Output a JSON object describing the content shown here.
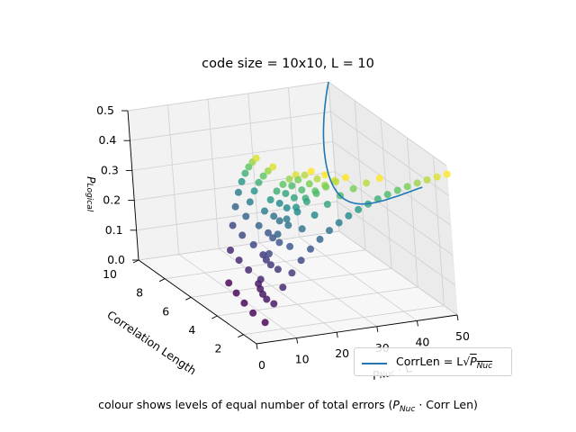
{
  "chart_data": {
    "type": "scatter",
    "title": "code size = 10x10, L = 10",
    "caption_prefix": "colour shows levels of equal number of total errors (",
    "caption_p": "P",
    "caption_sub": "Nuc",
    "caption_suffix": " · Corr Len)",
    "xlabel": "P",
    "xlabel_sub": "Nuc",
    "xlabel_rest": " · L",
    "ylabel": "Correlation Length",
    "zlabel": "P",
    "zlabel_sub": "Logical",
    "xlim": [
      0,
      50
    ],
    "ylim": [
      1,
      10
    ],
    "zlim": [
      0,
      0.5
    ],
    "x_ticks": [
      "0",
      "10",
      "20",
      "30",
      "40",
      "50"
    ],
    "y_ticks": [
      "2",
      "4",
      "6",
      "8",
      "10"
    ],
    "z_ticks": [
      "0.0",
      "0.1",
      "0.2",
      "0.3",
      "0.4",
      "0.5"
    ],
    "grid": true,
    "legend": {
      "position": "bottom-right",
      "label_prefix": "CorrLen = L",
      "label_p": "P",
      "label_sub": "Nuc"
    },
    "series": [
      {
        "levels": [
          1,
          2,
          3,
          4,
          5,
          6,
          7,
          8,
          9,
          10,
          11,
          12,
          13,
          14,
          15,
          16,
          17,
          18,
          19,
          20
        ]
      }
    ],
    "colormap": [
      "#440154",
      "#3b528b",
      "#21918c",
      "#5ec962",
      "#fde725"
    ]
  }
}
